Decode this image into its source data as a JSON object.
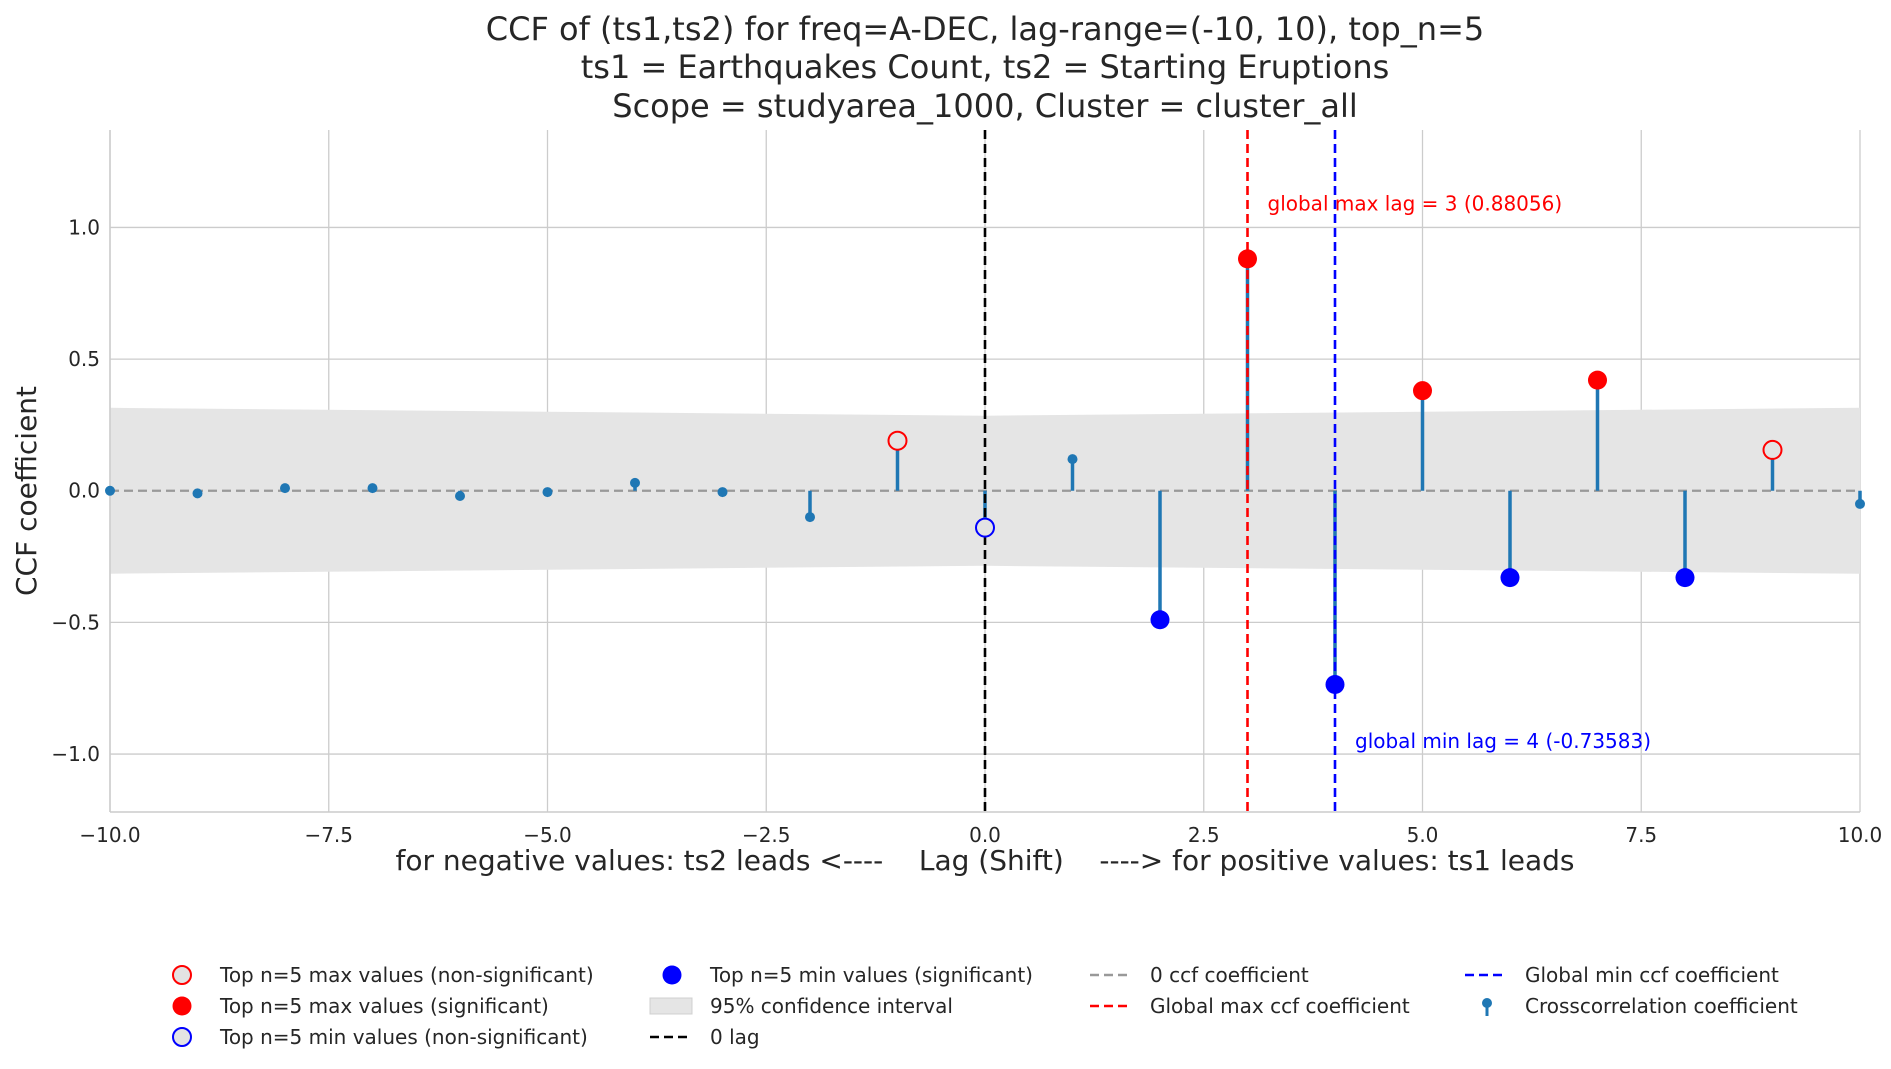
{
  "chart_data": {
    "type": "scatter",
    "title_lines": [
      "CCF of (ts1,ts2) for freq=A-DEC, lag-range=(-10, 10), top_n=5",
      "ts1 = Earthquakes Count, ts2 = Starting Eruptions",
      "Scope = studyarea_1000, Cluster = cluster_all"
    ],
    "xlabel": "for negative values: ts2 leads <----    Lag (Shift)    ----> for positive values: ts1 leads",
    "ylabel": "CCF coefficient",
    "xlim": [
      -10,
      10
    ],
    "ylim": [
      -1.22,
      1.37
    ],
    "xticks": [
      -10.0,
      -7.5,
      -5.0,
      -2.5,
      0.0,
      2.5,
      5.0,
      7.5,
      10.0
    ],
    "xtick_labels": [
      "−10.0",
      "−7.5",
      "−5.0",
      "−2.5",
      "0.0",
      "2.5",
      "5.0",
      "7.5",
      "10.0"
    ],
    "yticks": [
      -1.0,
      -0.5,
      0.0,
      0.5,
      1.0
    ],
    "ytick_labels": [
      "−1.0",
      "−0.5",
      "0.0",
      "0.5",
      "1.0"
    ],
    "grid": true,
    "legend_position": "bottom",
    "lags": [
      -10,
      -9,
      -8,
      -7,
      -6,
      -5,
      -4,
      -3,
      -2,
      -1,
      0,
      1,
      2,
      3,
      4,
      5,
      6,
      7,
      8,
      9,
      10
    ],
    "ccf": [
      0.0,
      -0.01,
      0.01,
      0.01,
      -0.02,
      -0.005,
      0.03,
      -0.005,
      -0.1,
      0.19,
      -0.14,
      0.12,
      -0.49,
      0.88056,
      -0.73583,
      0.38,
      -0.33,
      0.42,
      -0.33,
      0.155,
      -0.05
    ],
    "confidence_interval": {
      "x": [
        -10,
        -5,
        0,
        5,
        10
      ],
      "upper": [
        0.315,
        0.3,
        0.285,
        0.3,
        0.315
      ],
      "lower": [
        -0.315,
        -0.3,
        -0.285,
        -0.3,
        -0.315
      ]
    },
    "top_max_significant": [
      3,
      5,
      7
    ],
    "top_max_nonsignificant": [
      -1,
      9
    ],
    "top_min_significant": [
      2,
      4,
      6,
      8
    ],
    "top_min_nonsignificant": [
      0
    ],
    "zero_lag": 0,
    "global_max": {
      "lag": 3,
      "value": 0.88056,
      "label": "global max lag = 3 (0.88056)",
      "label_y": 1.09
    },
    "global_min": {
      "lag": 4,
      "value": -0.73583,
      "label": "global min lag = 4 (-0.73583)",
      "label_y": -0.95
    },
    "colors": {
      "stem": "#1f77b4",
      "max": "#ff0000",
      "min": "#0000ff",
      "zero_line": "#999999",
      "ci_fill": "#e5e5e5",
      "grid": "#cccccc",
      "lag_line": "#000000",
      "nonsig_fill": "#e3e3e3"
    },
    "legend": [
      {
        "key": "top-max-nonsig",
        "label": "Top n=5 max values (non-significant)"
      },
      {
        "key": "top-max-sig",
        "label": "Top n=5 max values (significant)"
      },
      {
        "key": "top-min-nonsig",
        "label": "Top n=5 min values (non-significant)"
      },
      {
        "key": "top-min-sig",
        "label": "Top n=5 min values (significant)"
      },
      {
        "key": "ci",
        "label": "95% confidence interval"
      },
      {
        "key": "zero-lag",
        "label": "0 lag"
      },
      {
        "key": "zero-ccf",
        "label": "0 ccf coefficient"
      },
      {
        "key": "global-max",
        "label": "Global max ccf coefficient"
      },
      {
        "key": "global-min",
        "label": "Global min ccf coefficient"
      },
      {
        "key": "ccf",
        "label": "Crosscorrelation coefficient"
      }
    ]
  }
}
